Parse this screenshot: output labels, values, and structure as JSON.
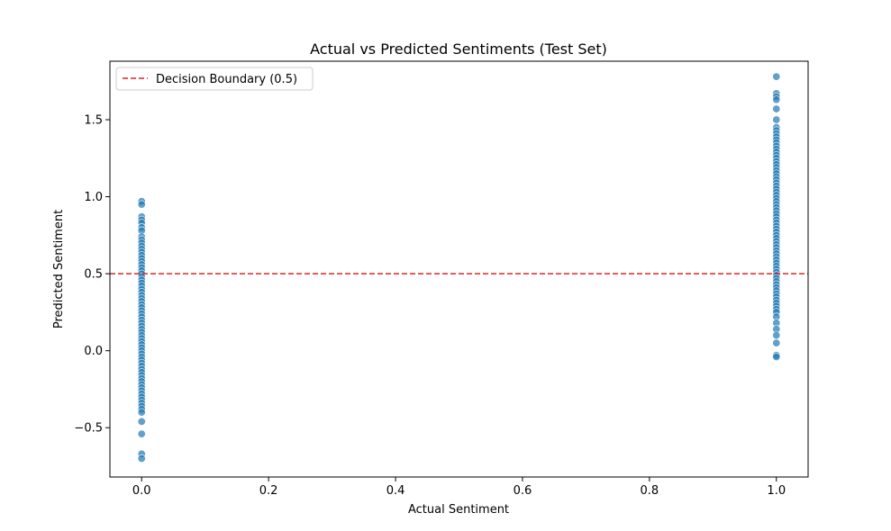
{
  "chart_data": {
    "type": "scatter",
    "title": "Actual vs Predicted Sentiments (Test Set)",
    "xlabel": "Actual Sentiment",
    "ylabel": "Predicted Sentiment",
    "xlim": [
      -0.05,
      1.05
    ],
    "ylim": [
      -0.82,
      1.88
    ],
    "xticks": [
      0.0,
      0.2,
      0.4,
      0.6,
      0.8,
      1.0
    ],
    "xtick_labels": [
      "0.0",
      "0.2",
      "0.4",
      "0.6",
      "0.8",
      "1.0"
    ],
    "yticks": [
      -0.5,
      0.0,
      0.5,
      1.0,
      1.5
    ],
    "ytick_labels": [
      "−0.5",
      "0.0",
      "0.5",
      "1.0",
      "1.5"
    ],
    "grid": false,
    "legend": {
      "placement": "top-left",
      "entries": [
        "Decision Boundary (0.5)"
      ]
    },
    "decision_boundary": {
      "y": 0.5,
      "label": "Decision Boundary (0.5)",
      "color": "#d62728",
      "style": "dashed"
    },
    "marker_color": "#1f77b4",
    "series": [
      {
        "x_value": 0,
        "values": [
          0.97,
          0.95,
          0.87,
          0.85,
          0.83,
          0.8,
          0.78,
          0.74,
          0.72,
          0.7,
          0.68,
          0.66,
          0.64,
          0.62,
          0.6,
          0.58,
          0.56,
          0.54,
          0.52,
          0.5,
          0.48,
          0.46,
          0.44,
          0.42,
          0.4,
          0.38,
          0.36,
          0.34,
          0.32,
          0.3,
          0.28,
          0.26,
          0.24,
          0.22,
          0.2,
          0.18,
          0.16,
          0.14,
          0.12,
          0.1,
          0.08,
          0.06,
          0.04,
          0.02,
          0.0,
          -0.02,
          -0.04,
          -0.06,
          -0.08,
          -0.1,
          -0.12,
          -0.14,
          -0.16,
          -0.18,
          -0.2,
          -0.22,
          -0.24,
          -0.26,
          -0.28,
          -0.3,
          -0.32,
          -0.34,
          -0.36,
          -0.38,
          -0.4,
          -0.46,
          -0.54,
          -0.67,
          -0.7
        ]
      },
      {
        "x_value": 1,
        "values": [
          1.78,
          1.67,
          1.65,
          1.63,
          1.57,
          1.5,
          1.45,
          1.43,
          1.41,
          1.39,
          1.37,
          1.35,
          1.33,
          1.31,
          1.29,
          1.27,
          1.25,
          1.23,
          1.21,
          1.19,
          1.17,
          1.15,
          1.13,
          1.11,
          1.09,
          1.07,
          1.05,
          1.03,
          1.01,
          0.99,
          0.97,
          0.95,
          0.93,
          0.91,
          0.89,
          0.87,
          0.85,
          0.83,
          0.81,
          0.79,
          0.77,
          0.75,
          0.73,
          0.71,
          0.69,
          0.67,
          0.65,
          0.63,
          0.61,
          0.59,
          0.57,
          0.55,
          0.53,
          0.51,
          0.49,
          0.47,
          0.45,
          0.43,
          0.41,
          0.39,
          0.37,
          0.35,
          0.33,
          0.31,
          0.29,
          0.27,
          0.25,
          0.22,
          0.18,
          0.14,
          0.1,
          0.05,
          -0.03,
          -0.04
        ]
      }
    ]
  }
}
